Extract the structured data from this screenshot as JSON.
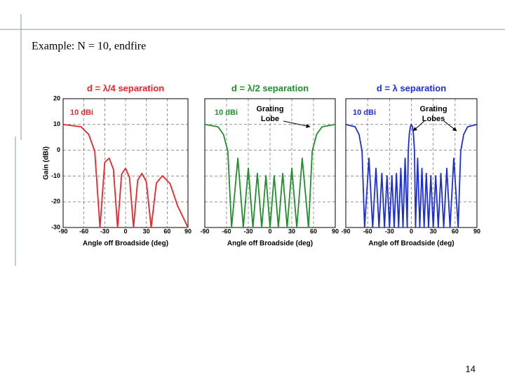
{
  "slide": {
    "title": "Example: N = 10, endfire",
    "page_number": "14"
  },
  "chart_data": [
    {
      "type": "line",
      "title": "d = λ/4 separation",
      "xlabel": "Angle off Broadside (deg)",
      "ylabel": "Gain (dBi)",
      "annotations": [
        "10 dBi"
      ],
      "grid": true,
      "ytick_labels": true,
      "xlim": [
        -90,
        90
      ],
      "ylim": [
        -30,
        20
      ],
      "xticks": [
        -90,
        -60,
        -30,
        0,
        30,
        60,
        90
      ],
      "yticks": [
        -30,
        -20,
        -10,
        0,
        10,
        20
      ],
      "x": [
        -90,
        -64.2,
        -53.1,
        -44.4,
        -36.9,
        -30,
        -23.6,
        -17.5,
        -11.5,
        -5.7,
        0,
        5.7,
        11.5,
        17.5,
        23.6,
        30,
        36.9,
        44.4,
        53.1,
        64.2,
        75,
        90
      ],
      "series": [
        {
          "color": "#e8262b",
          "values": [
            10,
            9.1,
            6.1,
            -0.4,
            -30,
            -4.7,
            -3.1,
            -7.4,
            -30,
            -9.3,
            -7,
            -10.6,
            -30,
            -11.6,
            -9,
            -12.3,
            -30,
            -12.8,
            -9.9,
            -13,
            -21.6,
            -30
          ]
        }
      ]
    },
    {
      "type": "line",
      "title": "d = λ/2 separation",
      "xlabel": "Angle off Broadside (deg)",
      "annotations": [
        "10 dBi",
        "Grating",
        "Lobe"
      ],
      "grid": true,
      "ytick_labels": false,
      "xlim": [
        -90,
        90
      ],
      "ylim": [
        -30,
        20
      ],
      "xticks": [
        -90,
        -60,
        -30,
        0,
        30,
        60,
        90
      ],
      "yticks": [
        -30,
        -20,
        -10,
        0,
        10,
        20
      ],
      "x": [
        -90,
        -71.8,
        -64.2,
        -58.2,
        -53.1,
        -44.4,
        -36.9,
        -30,
        -23.6,
        -17.5,
        -11.5,
        -5.7,
        0,
        5.7,
        11.5,
        17.5,
        23.6,
        30,
        36.9,
        44.4,
        53.1,
        58.2,
        64.2,
        71.8,
        90
      ],
      "series": [
        {
          "color": "#1f8f2a",
          "values": [
            10,
            9.1,
            6.1,
            -0.4,
            -30,
            -3.1,
            -30,
            -7,
            -30,
            -9,
            -30,
            -9.9,
            -30,
            -9.9,
            -30,
            -9,
            -30,
            -7,
            -30,
            -3.1,
            -30,
            -0.4,
            6.1,
            9.1,
            10
          ]
        }
      ]
    },
    {
      "type": "line",
      "title": "d = λ separation",
      "xlabel": "Angle off Broadside (deg)",
      "annotations": [
        "10 dBi",
        "Grating",
        "Lobes"
      ],
      "grid": true,
      "ytick_labels": false,
      "xlim": [
        -90,
        90
      ],
      "ylim": [
        -30,
        20
      ],
      "xticks": [
        -90,
        -60,
        -30,
        0,
        30,
        60,
        90
      ],
      "yticks": [
        -30,
        -20,
        -10,
        0,
        10,
        20
      ],
      "x": [
        -90,
        -77.2,
        -71.8,
        -67.7,
        -64.2,
        -58.2,
        -53.1,
        -48.6,
        -44.4,
        -40.5,
        -36.9,
        -33.4,
        -30,
        -26.7,
        -23.6,
        -20.5,
        -17.5,
        -14.5,
        -11.5,
        -8.6,
        -5.7,
        -4.3,
        -2.9,
        -1.4,
        0,
        1.4,
        2.9,
        4.3,
        5.7,
        8.6,
        11.5,
        14.5,
        17.5,
        20.5,
        23.6,
        26.7,
        30,
        33.4,
        36.9,
        40.5,
        44.4,
        48.6,
        53.1,
        58.2,
        64.2,
        67.7,
        71.8,
        77.2,
        90
      ],
      "series": [
        {
          "color": "#1c2fd6",
          "values": [
            10,
            9.1,
            6.1,
            -0.4,
            -30,
            -3.1,
            -30,
            -7,
            -30,
            -9,
            -30,
            -9.9,
            -30,
            -9.9,
            -30,
            -9,
            -30,
            -7,
            -30,
            -3.1,
            -30,
            -0.4,
            6.1,
            9.1,
            10,
            9.1,
            6.1,
            -0.4,
            -30,
            -3.1,
            -30,
            -7,
            -30,
            -9,
            -30,
            -9.9,
            -30,
            -9.9,
            -30,
            -9,
            -30,
            -7,
            -30,
            -3.1,
            -30,
            -0.4,
            6.1,
            9.1,
            10
          ]
        }
      ]
    }
  ]
}
